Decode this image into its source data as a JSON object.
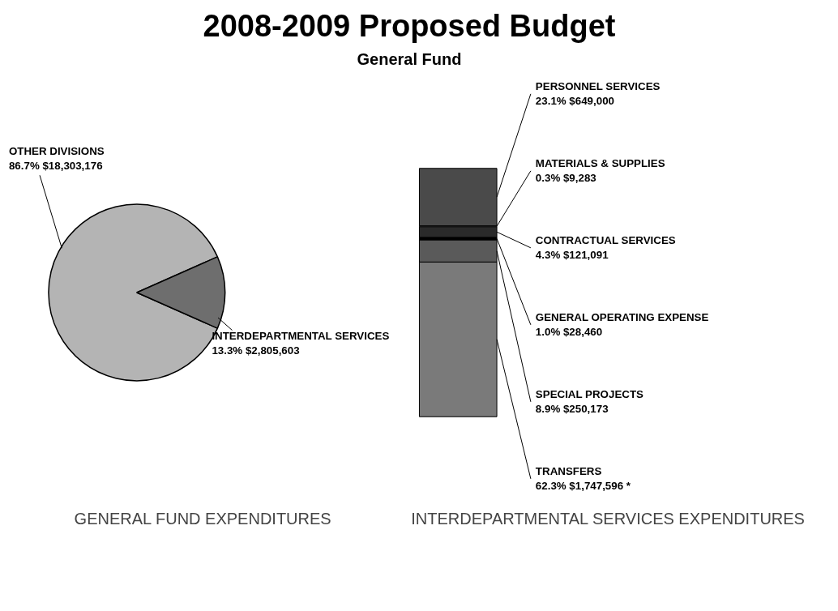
{
  "chart_data": [
    {
      "type": "pie",
      "title": "2008-2009 Proposed Budget",
      "subtitle": "General Fund",
      "xlabel": "GENERAL FUND EXPENDITURES",
      "categories": [
        "OTHER DIVISIONS",
        "INTERDEPARTMENTAL SERVICES"
      ],
      "values": [
        18303176,
        2805603
      ],
      "colors": [
        "#b4b4b4",
        "#6e6e6e"
      ],
      "value_labels": [
        "86.7%  $18,303,176",
        "13.3%  $2,805,603"
      ]
    },
    {
      "type": "bar",
      "stacked": true,
      "xlabel": "INTERDEPARTMENTAL SERVICES EXPENDITURES",
      "categories": [
        null
      ],
      "series": [
        {
          "name": "TRANSFERS",
          "color": "#7a7a7a",
          "values": [
            1747596
          ],
          "value_labels": [
            "62.3%  $1,747,596 *"
          ]
        },
        {
          "name": "SPECIAL PROJECTS",
          "color": "#5a5a5a",
          "values": [
            250173
          ],
          "value_labels": [
            "8.9%  $250,173"
          ]
        },
        {
          "name": "GENERAL OPERATING EXPENSE",
          "color": "#000000",
          "values": [
            28460
          ],
          "value_labels": [
            "1.0%  $28,460"
          ]
        },
        {
          "name": "CONTRACTUAL SERVICES",
          "color": "#2a2a2a",
          "values": [
            121091
          ],
          "value_labels": [
            "4.3%  $121,091"
          ]
        },
        {
          "name": "MATERIALS & SUPPLIES",
          "color": "#c8c8c8",
          "values": [
            9283
          ],
          "value_labels": [
            "0.3%  $9,283"
          ]
        },
        {
          "name": "PERSONNEL SERVICES",
          "color": "#4a4a4a",
          "values": [
            649000
          ],
          "value_labels": [
            "23.1%  $649,000"
          ]
        }
      ]
    }
  ]
}
